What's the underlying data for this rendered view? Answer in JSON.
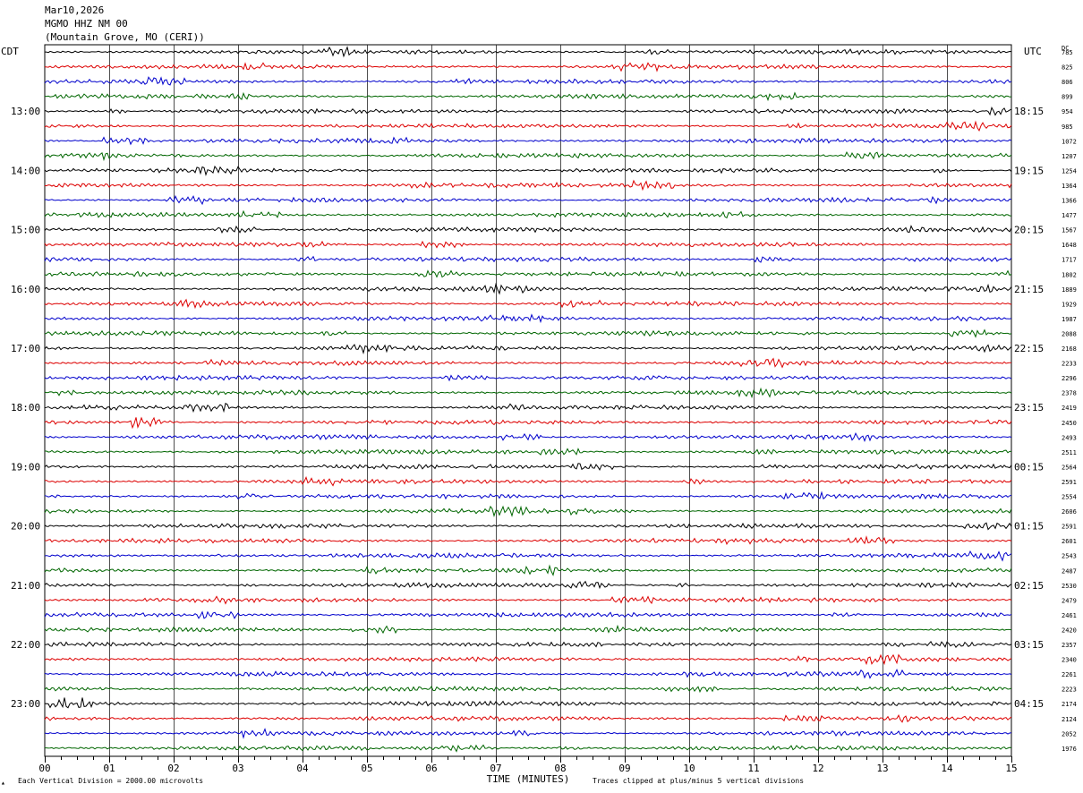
{
  "header": {
    "date": "Mar10,2026",
    "station": "MGMO HHZ NM 00",
    "location": "(Mountain Grove, MO (CERI))"
  },
  "left_label": "CDT",
  "right_label": "UTC",
  "dc_label": "DC",
  "footer": {
    "scale_note": "Each Vertical Division = 2000.00 microvolts",
    "clip_note": "Traces clipped at plus/minus 5 vertical divisions",
    "marker": "▴"
  },
  "colors": {
    "trace_cycle": [
      "#000000",
      "#dd0000",
      "#0000cc",
      "#006600"
    ],
    "grid": "#000000",
    "background": "#ffffff"
  },
  "chart_data": {
    "type": "line",
    "title": "MGMO HHZ NM 00",
    "xlabel": "TIME (MINUTES)",
    "ylabel": "",
    "xlim": [
      0,
      15
    ],
    "x_ticks": [
      "00",
      "01",
      "02",
      "03",
      "04",
      "05",
      "06",
      "07",
      "08",
      "09",
      "10",
      "11",
      "12",
      "13",
      "14",
      "15"
    ],
    "trace_minutes": 15,
    "hour_labels_left": [
      "13:00",
      "14:00",
      "15:00",
      "16:00",
      "17:00",
      "18:00",
      "19:00",
      "20:00",
      "21:00",
      "22:00",
      "23:00"
    ],
    "hour_labels_right": [
      "18:15",
      "19:15",
      "20:15",
      "21:15",
      "22:15",
      "23:15",
      "00:15",
      "01:15",
      "02:15",
      "03:15",
      "04:15"
    ],
    "first_hour_label_row": 4,
    "dc_offsets": [
      785,
      825,
      806,
      899,
      954,
      985,
      1072,
      1207,
      1254,
      1364,
      1366,
      1477,
      1567,
      1648,
      1717,
      1802,
      1889,
      1929,
      1987,
      2088,
      2168,
      2233,
      2296,
      2378,
      2419,
      2450,
      2493,
      2511,
      2564,
      2591,
      2554,
      2606,
      2591,
      2601,
      2543,
      2487,
      2530,
      2479,
      2461,
      2420,
      2357,
      2340,
      2261,
      2223,
      2174,
      2124,
      2052,
      1976
    ],
    "grid": true,
    "vertical_division_microvolts": 2000.0,
    "clip_divisions": 5
  }
}
